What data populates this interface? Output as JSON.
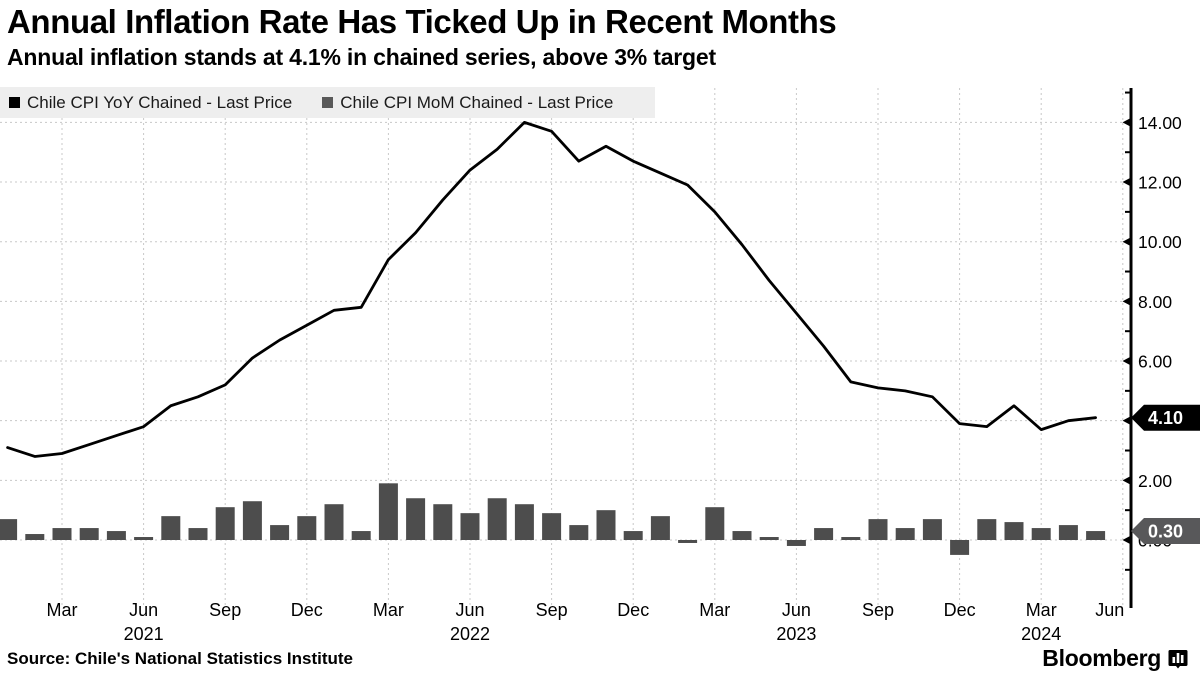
{
  "header": {
    "title": "Annual Inflation Rate Has Ticked Up in Recent Months",
    "subtitle": "Annual inflation stands at 4.1% in chained series, above 3% target"
  },
  "legend": {
    "items": [
      {
        "label": "Chile CPI YoY Chained - Last Price",
        "color": "#000000"
      },
      {
        "label": "Chile CPI MoM Chained - Last Price",
        "color": "#595959"
      }
    ]
  },
  "source": {
    "text": "Source: Chile's National Statistics Institute"
  },
  "branding": {
    "logo_text": "Bloomberg"
  },
  "colors": {
    "line": "#000000",
    "bar": "#4d4d4d",
    "grid": "#c8c8c8",
    "legend_bg": "#eeeeee",
    "badge_yoy_bg": "#000000",
    "badge_mom_bg": "#58585a",
    "badge_text": "#ffffff"
  },
  "chart_data": {
    "type": "line+bar",
    "title": "Annual Inflation Rate Has Ticked Up in Recent Months",
    "subtitle": "Annual inflation stands at 4.1% in chained series, above 3% target",
    "grid": true,
    "legend_position": "top-left",
    "x": [
      "Jan 2021",
      "Feb 2021",
      "Mar 2021",
      "Apr 2021",
      "May 2021",
      "Jun 2021",
      "Jul 2021",
      "Aug 2021",
      "Sep 2021",
      "Oct 2021",
      "Nov 2021",
      "Dec 2021",
      "Jan 2022",
      "Feb 2022",
      "Mar 2022",
      "Apr 2022",
      "May 2022",
      "Jun 2022",
      "Jul 2022",
      "Aug 2022",
      "Sep 2022",
      "Oct 2022",
      "Nov 2022",
      "Dec 2022",
      "Jan 2023",
      "Feb 2023",
      "Mar 2023",
      "Apr 2023",
      "May 2023",
      "Jun 2023",
      "Jul 2023",
      "Aug 2023",
      "Sep 2023",
      "Oct 2023",
      "Nov 2023",
      "Dec 2023",
      "Jan 2024",
      "Feb 2024",
      "Mar 2024",
      "Apr 2024",
      "May 2024"
    ],
    "series": [
      {
        "name": "Chile CPI YoY Chained - Last Price",
        "type": "line",
        "color": "#000000",
        "values": [
          3.1,
          2.8,
          2.9,
          3.2,
          3.5,
          3.8,
          4.5,
          4.8,
          5.2,
          6.1,
          6.7,
          7.2,
          7.7,
          7.8,
          9.4,
          10.3,
          11.4,
          12.4,
          13.1,
          14.0,
          13.7,
          12.7,
          13.2,
          12.7,
          12.3,
          11.9,
          11.0,
          9.9,
          8.7,
          7.6,
          6.5,
          5.3,
          5.1,
          5.0,
          4.8,
          3.9,
          3.8,
          4.5,
          3.7,
          4.0,
          4.1
        ]
      },
      {
        "name": "Chile CPI MoM Chained - Last Price",
        "type": "bar",
        "color": "#4d4d4d",
        "values": [
          0.7,
          0.2,
          0.4,
          0.4,
          0.3,
          0.1,
          0.8,
          0.4,
          1.1,
          1.3,
          0.5,
          0.8,
          1.2,
          0.3,
          1.9,
          1.4,
          1.2,
          0.9,
          1.4,
          1.2,
          0.9,
          0.5,
          1.0,
          0.3,
          0.8,
          -0.1,
          1.1,
          0.3,
          0.1,
          -0.2,
          0.4,
          0.1,
          0.7,
          0.4,
          0.7,
          -0.5,
          0.7,
          0.6,
          0.4,
          0.5,
          0.3
        ]
      }
    ],
    "last_price": [
      {
        "series": "Chile CPI YoY Chained - Last Price",
        "label": "4.10",
        "value": 4.1,
        "bg": "#000000"
      },
      {
        "series": "Chile CPI MoM Chained - Last Price",
        "label": "0.30",
        "value": 0.3,
        "bg": "#58585a"
      }
    ],
    "y_axis": {
      "side": "right",
      "range": [
        -2.05,
        15.15
      ],
      "major_ticks": [
        0,
        2,
        4,
        6,
        8,
        10,
        12,
        14
      ],
      "minor_tick_step": 1,
      "labels": [
        {
          "value": 14,
          "text": "14.00"
        },
        {
          "value": 12,
          "text": "12.00"
        },
        {
          "value": 10,
          "text": "10.00"
        },
        {
          "value": 8,
          "text": "8.00"
        },
        {
          "value": 6,
          "text": "6.00"
        },
        {
          "value": 2,
          "text": "2.00"
        },
        {
          "value": 0,
          "text": "0.00"
        }
      ]
    },
    "x_axis": {
      "ticks": [
        {
          "m": 2,
          "label": "Mar"
        },
        {
          "m": 5,
          "label": "Jun",
          "year": "2021"
        },
        {
          "m": 8,
          "label": "Sep"
        },
        {
          "m": 11,
          "label": "Dec"
        },
        {
          "m": 14,
          "label": "Mar"
        },
        {
          "m": 17,
          "label": "Jun",
          "year": "2022"
        },
        {
          "m": 20,
          "label": "Sep"
        },
        {
          "m": 23,
          "label": "Dec"
        },
        {
          "m": 26,
          "label": "Mar"
        },
        {
          "m": 29,
          "label": "Jun",
          "year": "2023"
        },
        {
          "m": 32,
          "label": "Sep"
        },
        {
          "m": 35,
          "label": "Dec"
        },
        {
          "m": 38,
          "label": "Mar",
          "year": "2024"
        },
        {
          "m": 41,
          "label": "Jun",
          "dx": -13
        }
      ]
    }
  }
}
